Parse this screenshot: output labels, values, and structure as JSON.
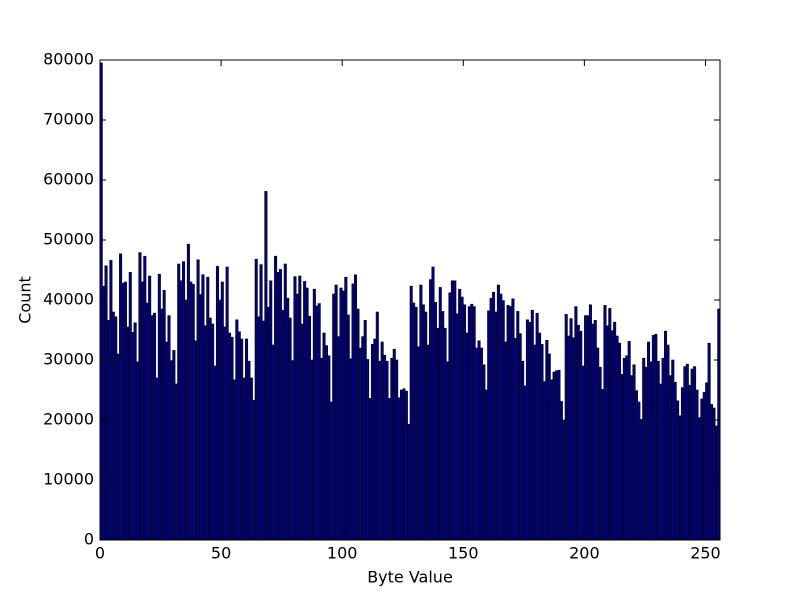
{
  "chart_data": {
    "type": "histogram",
    "xlabel": "Byte Value",
    "ylabel": "Count",
    "bins": [
      0,
      1,
      2,
      3,
      4,
      5,
      6,
      7,
      8,
      9,
      10,
      11,
      12,
      13,
      14,
      15,
      16,
      17,
      18,
      19,
      20,
      21,
      22,
      23,
      24,
      25,
      26,
      27,
      28,
      29,
      30,
      31,
      32,
      33,
      34,
      35,
      36,
      37,
      38,
      39,
      40,
      41,
      42,
      43,
      44,
      45,
      46,
      47,
      48,
      49,
      50,
      51,
      52,
      53,
      54,
      55,
      56,
      57,
      58,
      59,
      60,
      61,
      62,
      63,
      64,
      65,
      66,
      67,
      68,
      69,
      70,
      71,
      72,
      73,
      74,
      75,
      76,
      77,
      78,
      79,
      80,
      81,
      82,
      83,
      84,
      85,
      86,
      87,
      88,
      89,
      90,
      91,
      92,
      93,
      94,
      95,
      96,
      97,
      98,
      99,
      100,
      101,
      102,
      103,
      104,
      105,
      106,
      107,
      108,
      109,
      110,
      111,
      112,
      113,
      114,
      115,
      116,
      117,
      118,
      119,
      120,
      121,
      122,
      123,
      124,
      125,
      126,
      127,
      128,
      129,
      130,
      131,
      132,
      133,
      134,
      135,
      136,
      137,
      138,
      139,
      140,
      141,
      142,
      143,
      144,
      145,
      146,
      147,
      148,
      149,
      150,
      151,
      152,
      153,
      154,
      155,
      156,
      157,
      158,
      159,
      160,
      161,
      162,
      163,
      164,
      165,
      166,
      167,
      168,
      169,
      170,
      171,
      172,
      173,
      174,
      175,
      176,
      177,
      178,
      179,
      180,
      181,
      182,
      183,
      184,
      185,
      186,
      187,
      188,
      189,
      190,
      191,
      192,
      193,
      194,
      195,
      196,
      197,
      198,
      199,
      200,
      201,
      202,
      203,
      204,
      205,
      206,
      207,
      208,
      209,
      210,
      211,
      212,
      213,
      214,
      215,
      216,
      217,
      218,
      219,
      220,
      221,
      222,
      223,
      224,
      225,
      226,
      227,
      228,
      229,
      230,
      231,
      232,
      233,
      234,
      235,
      236,
      237,
      238,
      239,
      240,
      241,
      242,
      243,
      244,
      245,
      246,
      247,
      248,
      249,
      250,
      251,
      252,
      253,
      254,
      255,
      256
    ],
    "values": [
      79500,
      42300,
      45700,
      36600,
      46600,
      38000,
      37200,
      31000,
      47700,
      42800,
      43000,
      35500,
      44600,
      34600,
      36200,
      29700,
      47900,
      43000,
      47300,
      39500,
      44000,
      37400,
      37800,
      27000,
      44300,
      38500,
      41600,
      33000,
      37400,
      29900,
      31600,
      26000,
      46000,
      43200,
      46400,
      40000,
      49300,
      43000,
      42600,
      33200,
      46700,
      40900,
      44200,
      35700,
      43800,
      37000,
      36000,
      29000,
      45600,
      40000,
      43000,
      35500,
      45500,
      34500,
      33800,
      26700,
      36700,
      34700,
      33500,
      27000,
      33500,
      29800,
      27000,
      23300,
      46800,
      37200,
      45900,
      36500,
      58100,
      38800,
      43200,
      32500,
      47300,
      44600,
      45100,
      38300,
      46000,
      40300,
      37000,
      29900,
      43900,
      41000,
      44000,
      36000,
      43100,
      42000,
      37300,
      30000,
      41800,
      39000,
      39400,
      30300,
      34500,
      32400,
      30700,
      23000,
      41000,
      42500,
      33900,
      42000,
      41500,
      43800,
      37500,
      30200,
      42700,
      44200,
      38500,
      32000,
      33900,
      36600,
      30100,
      23600,
      32600,
      33500,
      38000,
      29800,
      33000,
      30800,
      29800,
      23600,
      30300,
      31800,
      30000,
      23700,
      25000,
      25200,
      24800,
      19300,
      42300,
      39500,
      38800,
      32200,
      42500,
      39200,
      38000,
      32500,
      43400,
      45500,
      39600,
      35300,
      42100,
      38100,
      35300,
      29700,
      41200,
      43200,
      43200,
      37700,
      41800,
      40500,
      39200,
      34500,
      38900,
      39300,
      38900,
      32000,
      33200,
      32000,
      29200,
      25000,
      38200,
      40300,
      41300,
      38000,
      42500,
      41000,
      39900,
      33000,
      39100,
      38900,
      40200,
      33600,
      38100,
      34400,
      29800,
      25700,
      36700,
      36300,
      38300,
      32500,
      37800,
      34500,
      32600,
      26400,
      33300,
      31000,
      26700,
      28000,
      28200,
      28300,
      23100,
      20000,
      37600,
      34000,
      36900,
      33700,
      38900,
      35800,
      34800,
      29000,
      37400,
      37400,
      39200,
      36000,
      36600,
      32000,
      28800,
      25100,
      39100,
      35700,
      38600,
      34900,
      36300,
      34000,
      32800,
      27600,
      30300,
      30700,
      33100,
      27400,
      29200,
      24900,
      23000,
      20100,
      30300,
      28800,
      33000,
      29700,
      34100,
      34300,
      29800,
      26000,
      30300,
      34800,
      32500,
      27400,
      30000,
      26300,
      23200,
      20700,
      25400,
      28900,
      29300,
      25800,
      28500,
      28900,
      25000,
      20400,
      23500,
      24600,
      26200,
      32800,
      22600,
      22000,
      19000,
      38500
    ],
    "color": "#000080",
    "xlim": [
      0,
      256
    ],
    "xticks": [
      0,
      50,
      100,
      150,
      200,
      250
    ],
    "ylim": [
      0,
      80000
    ],
    "yticks": [
      0,
      10000,
      20000,
      30000,
      40000,
      50000,
      60000,
      70000,
      80000
    ]
  }
}
